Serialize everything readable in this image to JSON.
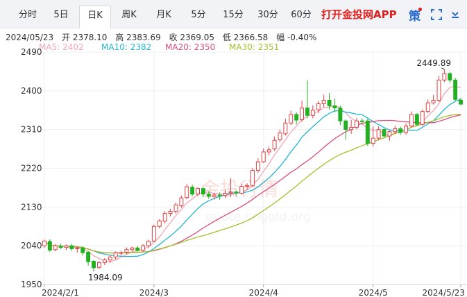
{
  "tabs": [
    {
      "label": "分时",
      "active": false
    },
    {
      "label": "5日",
      "active": false
    },
    {
      "label": "日K",
      "active": true
    },
    {
      "label": "周K",
      "active": false
    },
    {
      "label": "月K",
      "active": false
    },
    {
      "label": "5分",
      "active": false
    },
    {
      "label": "15分",
      "active": false
    },
    {
      "label": "30分",
      "active": false
    },
    {
      "label": "60分",
      "active": false
    }
  ],
  "promo_text": "打开金投网APP",
  "kan_label": "策",
  "icons": {
    "fullscreen": "fullscreen-icon",
    "download": "download-icon"
  },
  "info": {
    "date": "2024/05/23",
    "open": "开 2378.10",
    "high": "高 2383.69",
    "close": "收 2369.05",
    "low": "低 2366.58",
    "change": "幅 -0.40%"
  },
  "ma_legend": [
    {
      "label": "MA5: 2402",
      "color": "#f2a6b4"
    },
    {
      "label": "MA10: 2382",
      "color": "#22b5cf"
    },
    {
      "label": "MA20: 2350",
      "color": "#d94c7f"
    },
    {
      "label": "MA30: 2351",
      "color": "#a6bf2e"
    }
  ],
  "watermark": {
    "cn": "金投行情",
    "url": "quote.cngold.org"
  },
  "colors": {
    "up": "#e04040",
    "down": "#22b022",
    "grid": "#eceff2"
  },
  "chart_data": {
    "type": "candlestick",
    "ylim": [
      1950,
      2490
    ],
    "y_ticks": [
      1950,
      2040,
      2130,
      2220,
      2310,
      2400,
      2490
    ],
    "x_ticks": [
      {
        "label": "2024/2/1",
        "index": 0
      },
      {
        "label": "2024/3",
        "index": 20
      },
      {
        "label": "2024/4",
        "index": 40
      },
      {
        "label": "2024/5",
        "index": 60
      },
      {
        "label": "2024/5/23",
        "index": 76
      }
    ],
    "annotations": [
      {
        "label": "2449.89",
        "value": 2449.89,
        "index": 73
      },
      {
        "label": "1984.09",
        "value": 1984.09,
        "index": 9
      }
    ],
    "candles": [
      [
        2040,
        2051,
        2035,
        2054
      ],
      [
        2050,
        2030,
        2026,
        2055
      ],
      [
        2031,
        2040,
        2027,
        2044
      ],
      [
        2039,
        2036,
        2032,
        2045
      ],
      [
        2036,
        2040,
        2030,
        2043
      ],
      [
        2040,
        2033,
        2028,
        2044
      ],
      [
        2034,
        2035,
        2024,
        2038
      ],
      [
        2035,
        2024,
        2017,
        2039
      ],
      [
        2025,
        2003,
        1994,
        2028
      ],
      [
        2004,
        1989,
        1984.09,
        2007
      ],
      [
        1990,
        2001,
        1986,
        2004
      ],
      [
        2001,
        2007,
        1995,
        2011
      ],
      [
        2007,
        2014,
        2000,
        2019
      ],
      [
        2014,
        2024,
        2008,
        2027
      ],
      [
        2024,
        2024,
        2017,
        2028
      ],
      [
        2025,
        2031,
        2020,
        2036
      ],
      [
        2031,
        2035,
        2026,
        2038
      ],
      [
        2035,
        2029,
        2026,
        2039
      ],
      [
        2030,
        2040,
        2026,
        2044
      ],
      [
        2040,
        2050,
        2036,
        2054
      ],
      [
        2051,
        2085,
        2048,
        2089
      ],
      [
        2085,
        2098,
        2080,
        2102
      ],
      [
        2097,
        2115,
        2092,
        2120
      ],
      [
        2115,
        2120,
        2108,
        2126
      ],
      [
        2120,
        2135,
        2115,
        2140
      ],
      [
        2133,
        2151,
        2128,
        2157
      ],
      [
        2152,
        2177,
        2148,
        2184
      ],
      [
        2176,
        2160,
        2155,
        2182
      ],
      [
        2160,
        2173,
        2155,
        2176
      ],
      [
        2173,
        2160,
        2154,
        2176
      ],
      [
        2160,
        2155,
        2149,
        2167
      ],
      [
        2155,
        2158,
        2147,
        2163
      ],
      [
        2158,
        2157,
        2147,
        2164
      ],
      [
        2157,
        2162,
        2150,
        2170
      ],
      [
        2163,
        2165,
        2153,
        2197
      ],
      [
        2165,
        2163,
        2156,
        2168
      ],
      [
        2162,
        2178,
        2159,
        2184
      ],
      [
        2178,
        2180,
        2170,
        2185
      ],
      [
        2180,
        2215,
        2176,
        2221
      ],
      [
        2215,
        2235,
        2210,
        2243
      ],
      [
        2235,
        2258,
        2232,
        2266
      ],
      [
        2258,
        2263,
        2250,
        2270
      ],
      [
        2265,
        2285,
        2260,
        2294
      ],
      [
        2286,
        2302,
        2280,
        2310
      ],
      [
        2300,
        2325,
        2296,
        2335
      ],
      [
        2325,
        2345,
        2320,
        2354
      ],
      [
        2345,
        2332,
        2322,
        2350
      ],
      [
        2333,
        2360,
        2328,
        2377
      ],
      [
        2360,
        2343,
        2336,
        2424
      ],
      [
        2343,
        2355,
        2336,
        2366
      ],
      [
        2356,
        2370,
        2348,
        2376
      ],
      [
        2370,
        2378,
        2362,
        2391
      ],
      [
        2378,
        2365,
        2356,
        2395
      ],
      [
        2365,
        2360,
        2350,
        2382
      ],
      [
        2360,
        2330,
        2320,
        2365
      ],
      [
        2330,
        2310,
        2286,
        2334
      ],
      [
        2310,
        2315,
        2300,
        2332
      ],
      [
        2315,
        2330,
        2310,
        2337
      ],
      [
        2330,
        2329,
        2322,
        2336
      ],
      [
        2330,
        2278,
        2272,
        2335
      ],
      [
        2278,
        2290,
        2270,
        2318
      ],
      [
        2290,
        2310,
        2285,
        2317
      ],
      [
        2310,
        2295,
        2290,
        2313
      ],
      [
        2295,
        2305,
        2284,
        2308
      ],
      [
        2305,
        2312,
        2300,
        2319
      ],
      [
        2312,
        2303,
        2298,
        2317
      ],
      [
        2303,
        2318,
        2298,
        2324
      ],
      [
        2318,
        2345,
        2314,
        2352
      ],
      [
        2345,
        2322,
        2318,
        2348
      ],
      [
        2322,
        2352,
        2318,
        2357
      ],
      [
        2352,
        2372,
        2348,
        2380
      ],
      [
        2372,
        2378,
        2368,
        2390
      ],
      [
        2378,
        2425,
        2374,
        2435
      ],
      [
        2425,
        2440,
        2420,
        2449.89
      ],
      [
        2440,
        2425,
        2418,
        2444
      ],
      [
        2425,
        2380,
        2376,
        2430
      ],
      [
        2378.1,
        2369.05,
        2366.58,
        2383.69
      ]
    ]
  }
}
